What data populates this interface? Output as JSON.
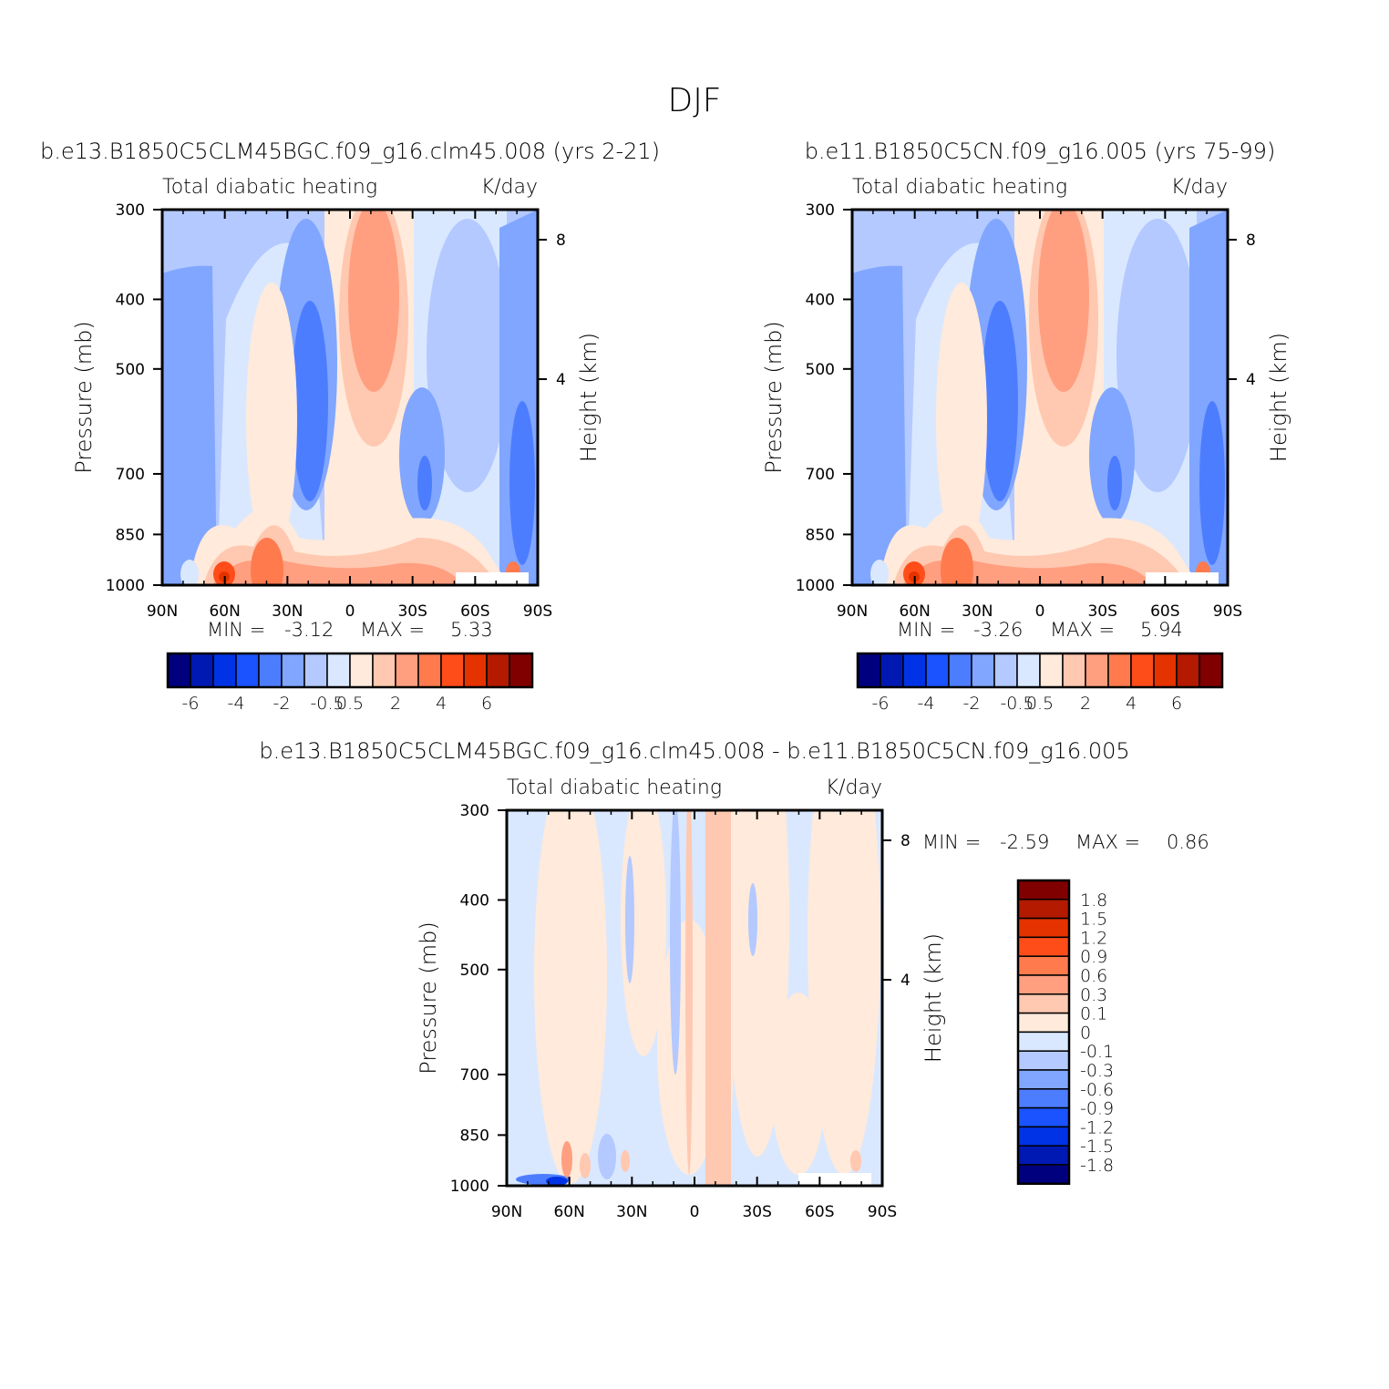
{
  "title": "DJF",
  "colors": {
    "diverging": [
      "#00007f",
      "#0019b2",
      "#0033e5",
      "#1a53ff",
      "#4d7dff",
      "#80a6ff",
      "#b3c9ff",
      "#d9e8ff",
      "#ffeadb",
      "#ffc8b0",
      "#ff9f80",
      "#ff7a4d",
      "#ff4d1a",
      "#e53300",
      "#b31a00",
      "#800000"
    ],
    "diff_scale": [
      "#800000",
      "#b31a00",
      "#e53300",
      "#ff4d1a",
      "#ff7a4d",
      "#ff9f80",
      "#ffc8b0",
      "#ffeadb",
      "#d9e8ff",
      "#b3c9ff",
      "#80a6ff",
      "#4d7dff",
      "#1a53ff",
      "#0033e5",
      "#0019b2",
      "#00007f"
    ]
  },
  "panels": [
    {
      "case": "b.e13.B1850C5CLM45BGC.f09_g16.clm45.008 (yrs 2-21)",
      "subtitle_left": "Total diabatic heating",
      "subtitle_right": "K/day",
      "min_label": "MIN =",
      "min_value": "-3.12",
      "max_label": "MAX =",
      "max_value": "5.33"
    },
    {
      "case": "b.e11.B1850C5CN.f09_g16.005 (yrs 75-99)",
      "subtitle_left": "Total diabatic heating",
      "subtitle_right": "K/day",
      "min_label": "MIN =",
      "min_value": "-3.26",
      "max_label": "MAX =",
      "max_value": "5.94"
    },
    {
      "case": "b.e13.B1850C5CLM45BGC.f09_g16.clm45.008 - b.e11.B1850C5CN.f09_g16.005",
      "subtitle_left": "Total diabatic heating",
      "subtitle_right": "K/day",
      "min_label": "MIN =",
      "min_value": "-2.59",
      "max_label": "MAX =",
      "max_value": "0.86"
    }
  ],
  "axes": {
    "ylabel": "Pressure (mb)",
    "ylabel_right": "Height (km)",
    "x_ticks": [
      "90N",
      "60N",
      "30N",
      "0",
      "30S",
      "60S",
      "90S"
    ],
    "y_ticks": [
      "300",
      "400",
      "500",
      "700",
      "850",
      "1000"
    ],
    "y_right_ticks": [
      "8",
      "4"
    ]
  },
  "colorbar_labels": [
    "-6",
    "-4",
    "-2",
    "-0.5",
    "0.5",
    "2",
    "4",
    "6"
  ],
  "diff_colorbar_labels": [
    "1.8",
    "1.5",
    "1.2",
    "0.9",
    "0.6",
    "0.3",
    "0.1",
    "0",
    "-0.1",
    "-0.3",
    "-0.6",
    "-0.9",
    "-1.2",
    "-1.5",
    "-1.8"
  ],
  "chart_data": [
    {
      "type": "heatmap",
      "title": "b.e13.B1850C5CLM45BGC.f09_g16.clm45.008 (yrs 2-21)",
      "subtitle": "Total diabatic heating",
      "units": "K/day",
      "xlabel": "",
      "ylabel": "Pressure (mb)",
      "ylabel_right": "Height (km)",
      "x_range": [
        "90N",
        "90S"
      ],
      "ylim": [
        1000,
        300
      ],
      "y_scale": "log",
      "levels": [
        -6,
        -4,
        -2,
        -0.5,
        0.5,
        2,
        4,
        6
      ],
      "min": -3.12,
      "max": 5.33
    },
    {
      "type": "heatmap",
      "title": "b.e11.B1850C5CN.f09_g16.005 (yrs 75-99)",
      "subtitle": "Total diabatic heating",
      "units": "K/day",
      "xlabel": "",
      "ylabel": "Pressure (mb)",
      "ylabel_right": "Height (km)",
      "x_range": [
        "90N",
        "90S"
      ],
      "ylim": [
        1000,
        300
      ],
      "y_scale": "log",
      "levels": [
        -6,
        -4,
        -2,
        -0.5,
        0.5,
        2,
        4,
        6
      ],
      "min": -3.26,
      "max": 5.94
    },
    {
      "type": "heatmap",
      "title": "b.e13.B1850C5CLM45BGC.f09_g16.clm45.008 - b.e11.B1850C5CN.f09_g16.005",
      "subtitle": "Total diabatic heating",
      "units": "K/day",
      "xlabel": "",
      "ylabel": "Pressure (mb)",
      "ylabel_right": "Height (km)",
      "x_range": [
        "90N",
        "90S"
      ],
      "ylim": [
        1000,
        300
      ],
      "y_scale": "log",
      "levels": [
        1.8,
        1.5,
        1.2,
        0.9,
        0.6,
        0.3,
        0.1,
        0,
        -0.1,
        -0.3,
        -0.6,
        -0.9,
        -1.2,
        -1.5,
        -1.8
      ],
      "min": -2.59,
      "max": 0.86
    }
  ]
}
